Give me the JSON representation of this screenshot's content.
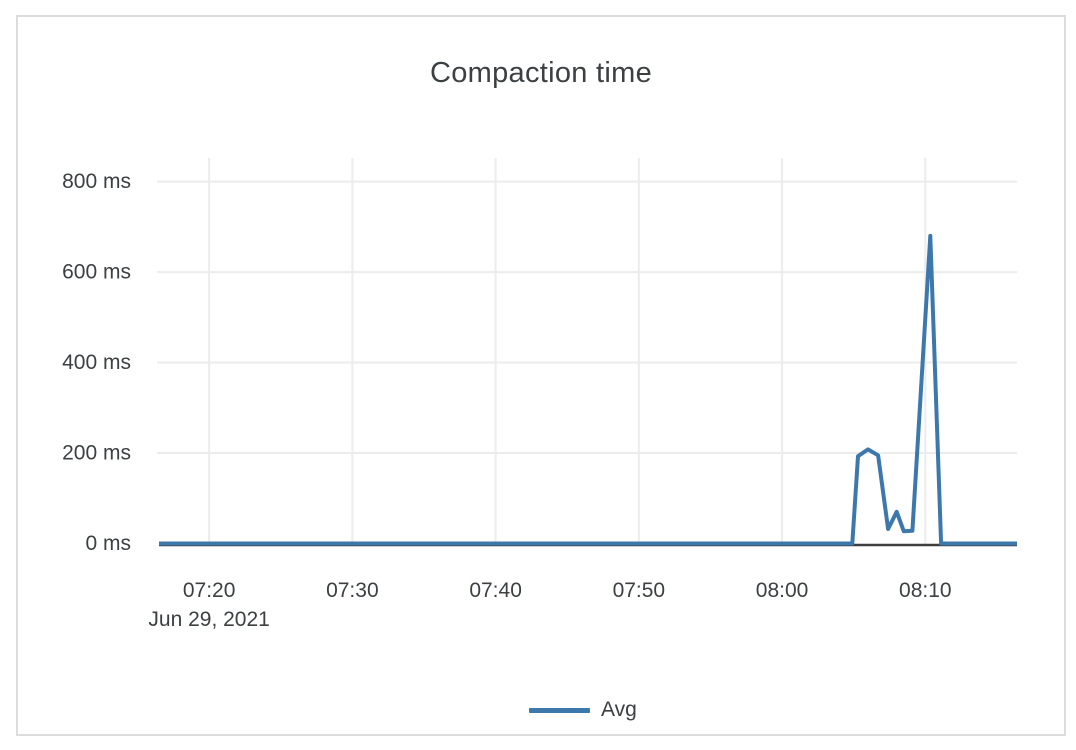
{
  "chart_data": {
    "type": "line",
    "title": "Compaction time",
    "legend": {
      "entries": [
        "Avg"
      ],
      "position": "bottom-center"
    },
    "x_axis": {
      "date_label": "Jun 29, 2021",
      "tick_labels": [
        "07:20",
        "07:30",
        "07:40",
        "07:50",
        "08:00",
        "08:10"
      ],
      "tick_minutes": [
        20,
        30,
        40,
        50,
        60,
        70
      ],
      "range_minutes_after_0700": [
        16.5,
        76.4
      ]
    },
    "y_axis": {
      "tick_labels": [
        "0 ms",
        "200 ms",
        "400 ms",
        "600 ms",
        "800 ms"
      ],
      "tick_values": [
        0,
        200,
        400,
        600,
        800
      ],
      "range": [
        0,
        850
      ],
      "unit": "ms"
    },
    "series": [
      {
        "name": "Avg",
        "color": "#3d78ad",
        "points_note": "x = minutes after 07:00 on Jun 29 2021, y = milliseconds",
        "points": [
          [
            16.5,
            0
          ],
          [
            64.9,
            0
          ],
          [
            65.3,
            193
          ],
          [
            66.0,
            208
          ],
          [
            66.7,
            195
          ],
          [
            67.4,
            32
          ],
          [
            68.0,
            70
          ],
          [
            68.5,
            27
          ],
          [
            69.1,
            28
          ],
          [
            70.35,
            680
          ],
          [
            71.1,
            0
          ],
          [
            76.4,
            0
          ]
        ]
      }
    ],
    "grid": {
      "show": true,
      "color": "#ececec"
    },
    "axis_line_color": "#3d3d3d",
    "text_color": "#3c4043",
    "background": "#ffffff",
    "border_color": "#dcdcdc"
  }
}
